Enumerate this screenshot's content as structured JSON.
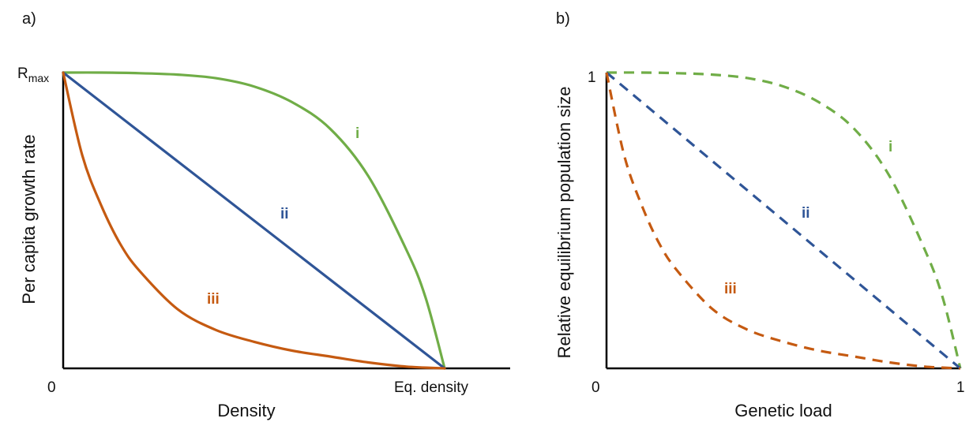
{
  "chart_data": [
    {
      "panel_label": "a)",
      "type": "line",
      "line_style": "solid",
      "xlabel": "Density",
      "ylabel": "Per capita growth rate",
      "x_ticks": [
        {
          "value": 0,
          "label": "0"
        },
        {
          "value": 1,
          "label": "Eq. density"
        }
      ],
      "y_ticks": [
        {
          "value": 0,
          "label": ""
        },
        {
          "value": 1,
          "label_main": "R",
          "label_sub": "max"
        }
      ],
      "xlim": [
        0,
        1.18
      ],
      "ylim": [
        0,
        1
      ],
      "grid": false,
      "legend": "none",
      "series": [
        {
          "name": "i",
          "color": "#70AD47",
          "x": [
            0,
            0.1,
            0.2,
            0.3,
            0.4,
            0.5,
            0.6,
            0.7,
            0.8,
            0.9,
            0.95,
            1
          ],
          "y": [
            1,
            1,
            0.998,
            0.993,
            0.981,
            0.953,
            0.9,
            0.81,
            0.65,
            0.4,
            0.24,
            0
          ]
        },
        {
          "name": "ii",
          "color": "#2F5597",
          "x": [
            0,
            0.25,
            0.5,
            0.75,
            1
          ],
          "y": [
            1,
            0.75,
            0.5,
            0.25,
            0
          ]
        },
        {
          "name": "iii",
          "color": "#C55A11",
          "x": [
            0,
            0.05,
            0.1,
            0.15,
            0.2,
            0.3,
            0.4,
            0.5,
            0.6,
            0.7,
            0.8,
            0.9,
            1
          ],
          "y": [
            1,
            0.72,
            0.55,
            0.42,
            0.33,
            0.2,
            0.13,
            0.09,
            0.06,
            0.04,
            0.02,
            0.006,
            0
          ]
        }
      ]
    },
    {
      "panel_label": "b)",
      "type": "line",
      "line_style": "dashed",
      "xlabel": "Genetic load",
      "ylabel": "Relative equilibrium population size",
      "x_ticks": [
        {
          "value": 0,
          "label": "0"
        },
        {
          "value": 1,
          "label": "1"
        }
      ],
      "y_ticks": [
        {
          "value": 0,
          "label": ""
        },
        {
          "value": 1,
          "label_main": "1",
          "label_sub": ""
        }
      ],
      "xlim": [
        0,
        1
      ],
      "ylim": [
        0,
        1
      ],
      "grid": false,
      "legend": "none",
      "series": [
        {
          "name": "i",
          "color": "#70AD47",
          "x": [
            0,
            0.1,
            0.2,
            0.3,
            0.4,
            0.5,
            0.6,
            0.7,
            0.8,
            0.9,
            0.95,
            1
          ],
          "y": [
            1,
            1,
            0.998,
            0.993,
            0.981,
            0.953,
            0.9,
            0.81,
            0.65,
            0.4,
            0.24,
            0
          ]
        },
        {
          "name": "ii",
          "color": "#2F5597",
          "x": [
            0,
            0.25,
            0.5,
            0.75,
            1
          ],
          "y": [
            1,
            0.75,
            0.5,
            0.25,
            0
          ]
        },
        {
          "name": "iii",
          "color": "#C55A11",
          "x": [
            0,
            0.05,
            0.1,
            0.15,
            0.2,
            0.3,
            0.4,
            0.5,
            0.6,
            0.7,
            0.8,
            0.9,
            1
          ],
          "y": [
            1,
            0.72,
            0.55,
            0.42,
            0.33,
            0.2,
            0.13,
            0.09,
            0.06,
            0.04,
            0.02,
            0.006,
            0
          ]
        }
      ]
    }
  ]
}
